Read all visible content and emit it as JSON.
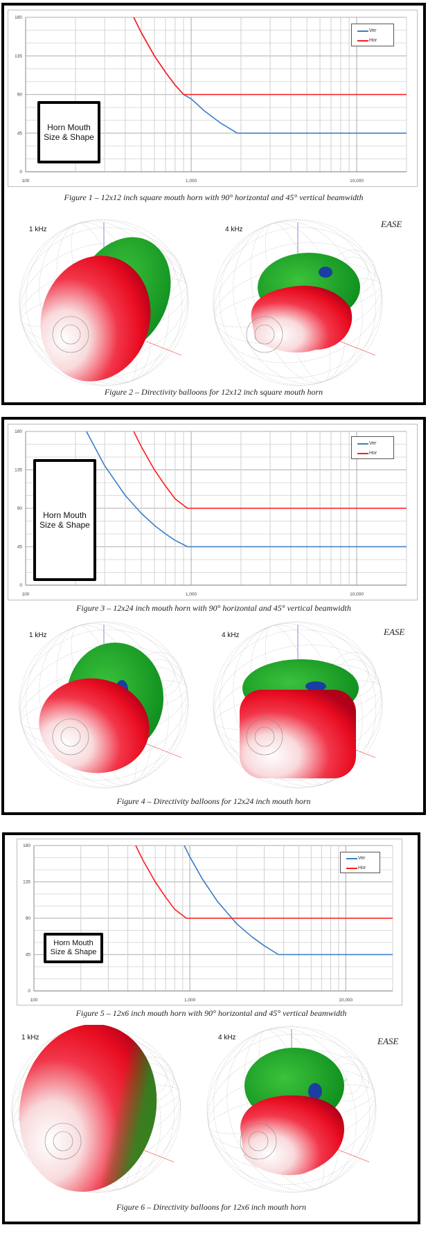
{
  "chart_data": [
    {
      "type": "line",
      "title": "",
      "caption": "Figure 1 – 12x12 inch square mouth horn with 90° horizontal and 45° vertical beamwidth",
      "xscale": "log",
      "xlim": [
        100,
        20000
      ],
      "ylim": [
        0,
        180
      ],
      "yticks": [
        0,
        45,
        90,
        135,
        180
      ],
      "ytick_labels": [
        "0",
        "45",
        "90",
        "135",
        "180"
      ],
      "xticks": [
        100,
        1000,
        10000
      ],
      "xtick_labels": [
        "100",
        "1,000",
        "10,000"
      ],
      "grid": true,
      "legend_position": "top-right",
      "annotation": {
        "line1": "Horn Mouth",
        "line2": "Size & Shape"
      },
      "series": [
        {
          "name": "Ver",
          "color": "#3a7dc6",
          "points": [
            [
              450,
              180
            ],
            [
              500,
              162
            ],
            [
              600,
              135
            ],
            [
              700,
              116
            ],
            [
              800,
              101
            ],
            [
              900,
              90
            ],
            [
              1000,
              85
            ],
            [
              1200,
              71
            ],
            [
              1500,
              57
            ],
            [
              1900,
              45
            ],
            [
              20000,
              45
            ]
          ]
        },
        {
          "name": "Hor",
          "color": "#ff1a1a",
          "points": [
            [
              450,
              180
            ],
            [
              500,
              162
            ],
            [
              600,
              135
            ],
            [
              700,
              116
            ],
            [
              800,
              101
            ],
            [
              900,
              90
            ],
            [
              20000,
              90
            ]
          ]
        }
      ]
    },
    {
      "type": "line",
      "title": "",
      "caption": "Figure 3 – 12x24 inch mouth horn with 90° horizontal and 45° vertical beamwidth",
      "xscale": "log",
      "xlim": [
        100,
        20000
      ],
      "ylim": [
        0,
        180
      ],
      "yticks": [
        0,
        45,
        90,
        135,
        180
      ],
      "ytick_labels": [
        "0",
        "45",
        "90",
        "135",
        "180"
      ],
      "xticks": [
        100,
        1000,
        10000
      ],
      "xtick_labels": [
        "100",
        "1,000",
        "10,000"
      ],
      "grid": true,
      "legend_position": "top-right",
      "annotation": {
        "line1": "Horn Mouth",
        "line2": "Size & Shape"
      },
      "series": [
        {
          "name": "Ver",
          "color": "#3a7dc6",
          "points": [
            [
              233,
              180
            ],
            [
              300,
              140
            ],
            [
              400,
              105
            ],
            [
              500,
              84
            ],
            [
              600,
              70
            ],
            [
              700,
              60
            ],
            [
              800,
              52.5
            ],
            [
              950,
              45
            ],
            [
              20000,
              45
            ]
          ]
        },
        {
          "name": "Hor",
          "color": "#ff1a1a",
          "points": [
            [
              450,
              180
            ],
            [
              500,
              162
            ],
            [
              600,
              135
            ],
            [
              700,
              116
            ],
            [
              800,
              101
            ],
            [
              950,
              90
            ],
            [
              20000,
              90
            ]
          ]
        }
      ]
    },
    {
      "type": "line",
      "title": "",
      "caption": "Figure 5 – 12x6 inch mouth horn with 90° horizontal and 45° vertical beamwidth",
      "xscale": "log",
      "xlim": [
        100,
        20000
      ],
      "ylim": [
        0,
        180
      ],
      "yticks": [
        0,
        45,
        90,
        135,
        180
      ],
      "ytick_labels": [
        "0",
        "45",
        "90",
        "135",
        "180"
      ],
      "xticks": [
        100,
        1000,
        10000
      ],
      "xtick_labels": [
        "100",
        "1,000",
        "10,000"
      ],
      "grid": true,
      "legend_position": "top-right",
      "annotation": {
        "line1": "Horn Mouth",
        "line2": "Size & Shape"
      },
      "series": [
        {
          "name": "Ver",
          "color": "#3a7dc6",
          "points": [
            [
              920,
              180
            ],
            [
              1000,
              166
            ],
            [
              1200,
              139
            ],
            [
              1500,
              111
            ],
            [
              2000,
              83
            ],
            [
              2500,
              67
            ],
            [
              3000,
              56
            ],
            [
              3700,
              45
            ],
            [
              20000,
              45
            ]
          ]
        },
        {
          "name": "Hor",
          "color": "#ff1a1a",
          "points": [
            [
              450,
              180
            ],
            [
              500,
              162
            ],
            [
              600,
              135
            ],
            [
              700,
              116
            ],
            [
              800,
              101
            ],
            [
              950,
              90
            ],
            [
              20000,
              90
            ]
          ]
        }
      ]
    }
  ],
  "balloons": [
    {
      "caption": "Figure 2 – Directivity balloons for 12x12 inch square mouth horn",
      "left_label": "1 kHz",
      "right_label": "4 kHz",
      "watermark": "EASE"
    },
    {
      "caption": "Figure 4 – Directivity balloons for 12x24 inch mouth horn",
      "left_label": "1 kHz",
      "right_label": "4 kHz",
      "watermark": "EASE"
    },
    {
      "caption": "Figure 6 – Directivity balloons for 12x6 inch mouth horn",
      "left_label": "1 kHz",
      "right_label": "4 kHz",
      "watermark": "EASE"
    }
  ]
}
